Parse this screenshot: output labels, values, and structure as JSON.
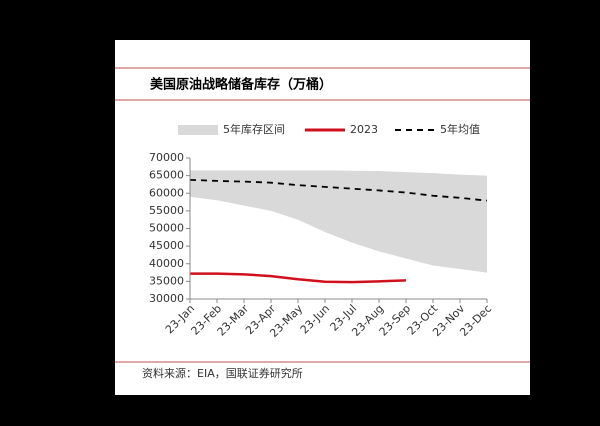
{
  "chart_data": {
    "type": "band-line",
    "title": "美国原油战略储备库存（万桶）",
    "source": "资料来源：EIA，国联证券研究所",
    "categories": [
      "23-Jan",
      "23-Feb",
      "23-Mar",
      "23-Apr",
      "23-May",
      "23-Jun",
      "23-Jul",
      "23-Aug",
      "23-Sep",
      "23-Oct",
      "23-Nov",
      "23-Dec"
    ],
    "series": [
      {
        "name": "5年库存区间",
        "kind": "band",
        "color": "#d9d9d9",
        "high": [
          66500,
          66500,
          66500,
          66500,
          66500,
          66500,
          66400,
          66300,
          66000,
          65700,
          65300,
          65000
        ],
        "low": [
          59000,
          58000,
          56500,
          55000,
          52500,
          49000,
          46000,
          43500,
          41500,
          39500,
          38500,
          37500
        ]
      },
      {
        "name": "2023",
        "kind": "line",
        "color": "#d0101c",
        "values": [
          37200,
          37200,
          37000,
          36500,
          35600,
          34900,
          34800,
          35000,
          35300,
          null,
          null,
          null
        ]
      },
      {
        "name": "5年均值",
        "kind": "dashed",
        "color": "#000000",
        "values": [
          63800,
          63500,
          63300,
          63000,
          62300,
          61800,
          61300,
          60800,
          60200,
          59300,
          58700,
          57900
        ]
      }
    ],
    "ylim": [
      30000,
      70000
    ],
    "yticks": [
      30000,
      35000,
      40000,
      45000,
      50000,
      55000,
      60000,
      65000,
      70000
    ]
  }
}
